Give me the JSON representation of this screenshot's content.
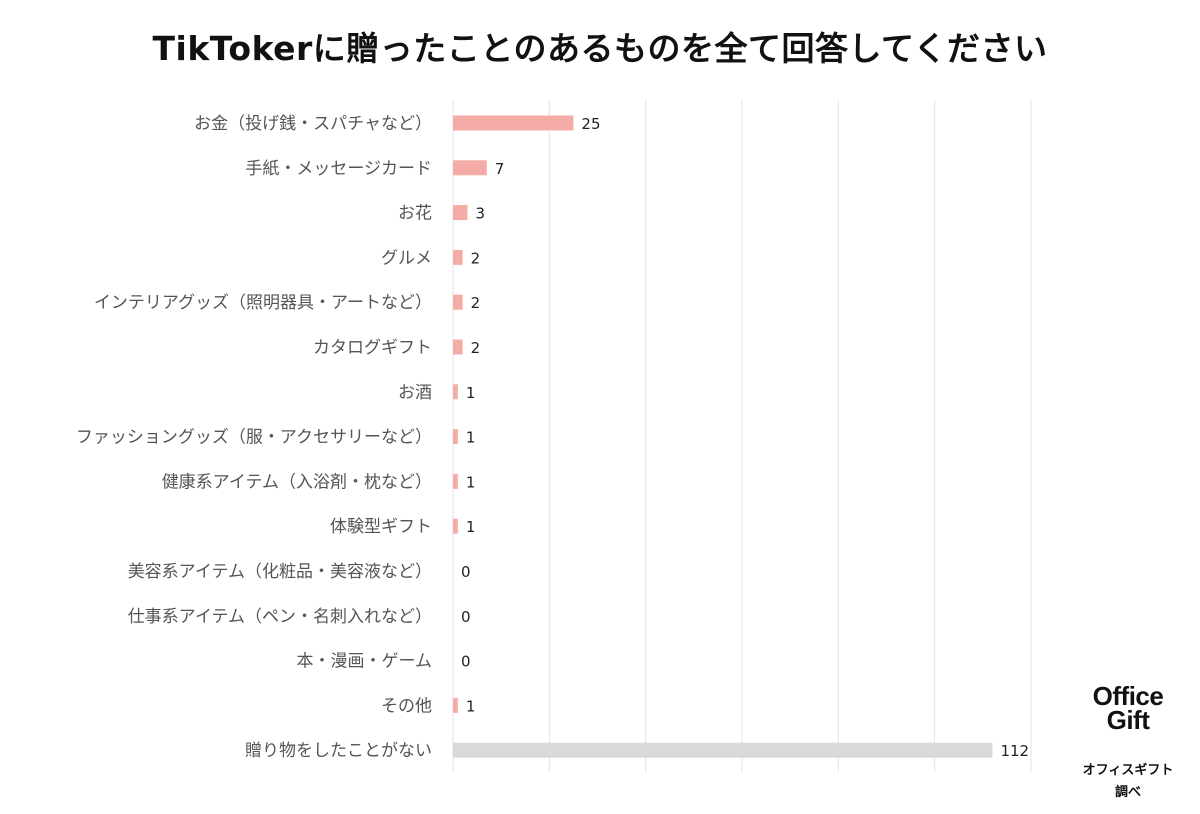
{
  "chart_data": {
    "type": "bar",
    "orientation": "horizontal",
    "title": "TikTokerに贈ったことのあるものを全て回答してください",
    "xlabel": "",
    "ylabel": "",
    "xlim": [
      0,
      120
    ],
    "grid": "vertical",
    "legend": "none",
    "categories": [
      "お金（投げ銭・スパチャなど）",
      "手紙・メッセージカード",
      "お花",
      "グルメ",
      "インテリアグッズ（照明器具・アートなど）",
      "カタログギフト",
      "お酒",
      "ファッショングッズ（服・アクセサリーなど）",
      "健康系アイテム（入浴剤・枕など）",
      "体験型ギフト",
      "美容系アイテム（化粧品・美容液など）",
      "仕事系アイテム（ペン・名刺入れなど）",
      "本・漫画・ゲーム",
      "その他",
      "贈り物をしたことがない"
    ],
    "values": [
      25,
      7,
      3,
      2,
      2,
      2,
      1,
      1,
      1,
      1,
      0,
      0,
      0,
      1,
      112
    ],
    "bar_colors": [
      "#f5aba6",
      "#f5aba6",
      "#f5aba6",
      "#f5aba6",
      "#f5aba6",
      "#f5aba6",
      "#f5aba6",
      "#f5aba6",
      "#f5aba6",
      "#f5aba6",
      "#f5aba6",
      "#f5aba6",
      "#f5aba6",
      "#f5aba6",
      "#d9d9d9"
    ]
  },
  "logo": {
    "line1": "Office",
    "line2": "Gift"
  },
  "credit": {
    "line1": "オフィスギフト",
    "line2": "調べ"
  }
}
